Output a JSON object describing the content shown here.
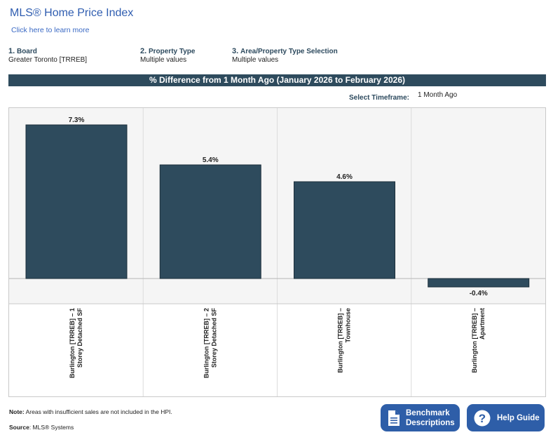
{
  "header": {
    "title": "MLS® Home Price Index",
    "learn_link": "Click here to learn more"
  },
  "filters": [
    {
      "num": "1.",
      "label": "Board",
      "value": "Greater Toronto [TRREB]"
    },
    {
      "num": "2.",
      "label": "Property Type",
      "value": "Multiple values"
    },
    {
      "num": "3.",
      "label": "Area/Property Type Selection",
      "value": "Multiple values"
    }
  ],
  "timeframe": {
    "label": "Select Timeframe:",
    "value": "1 Month Ago"
  },
  "chart_data": {
    "type": "bar",
    "title": "% Difference from 1 Month Ago (January 2026 to February 2026)",
    "categories": [
      "Burlington [TRREB] – 1 Storey Detached SF",
      "Burlington [TRREB] – 2 Storey Detached SF",
      "Burlington [TRREB] – Townhouse",
      "Burlington [TRREB] – Apartment"
    ],
    "values": [
      7.3,
      5.4,
      4.6,
      -0.4
    ],
    "labels": [
      "7.3%",
      "5.4%",
      "4.6%",
      "-0.4%"
    ],
    "ylim": [
      -1.2,
      8.1
    ],
    "color": "#2e4b5d",
    "grid": false
  },
  "footer": {
    "note_label": "Note:",
    "note": " Areas with insufficient sales are not included in the HPI.",
    "source_label": "Source",
    "source": ": MLS® Systems",
    "benchmark_button": "Benchmark Descriptions",
    "help_button": "Help Guide"
  }
}
